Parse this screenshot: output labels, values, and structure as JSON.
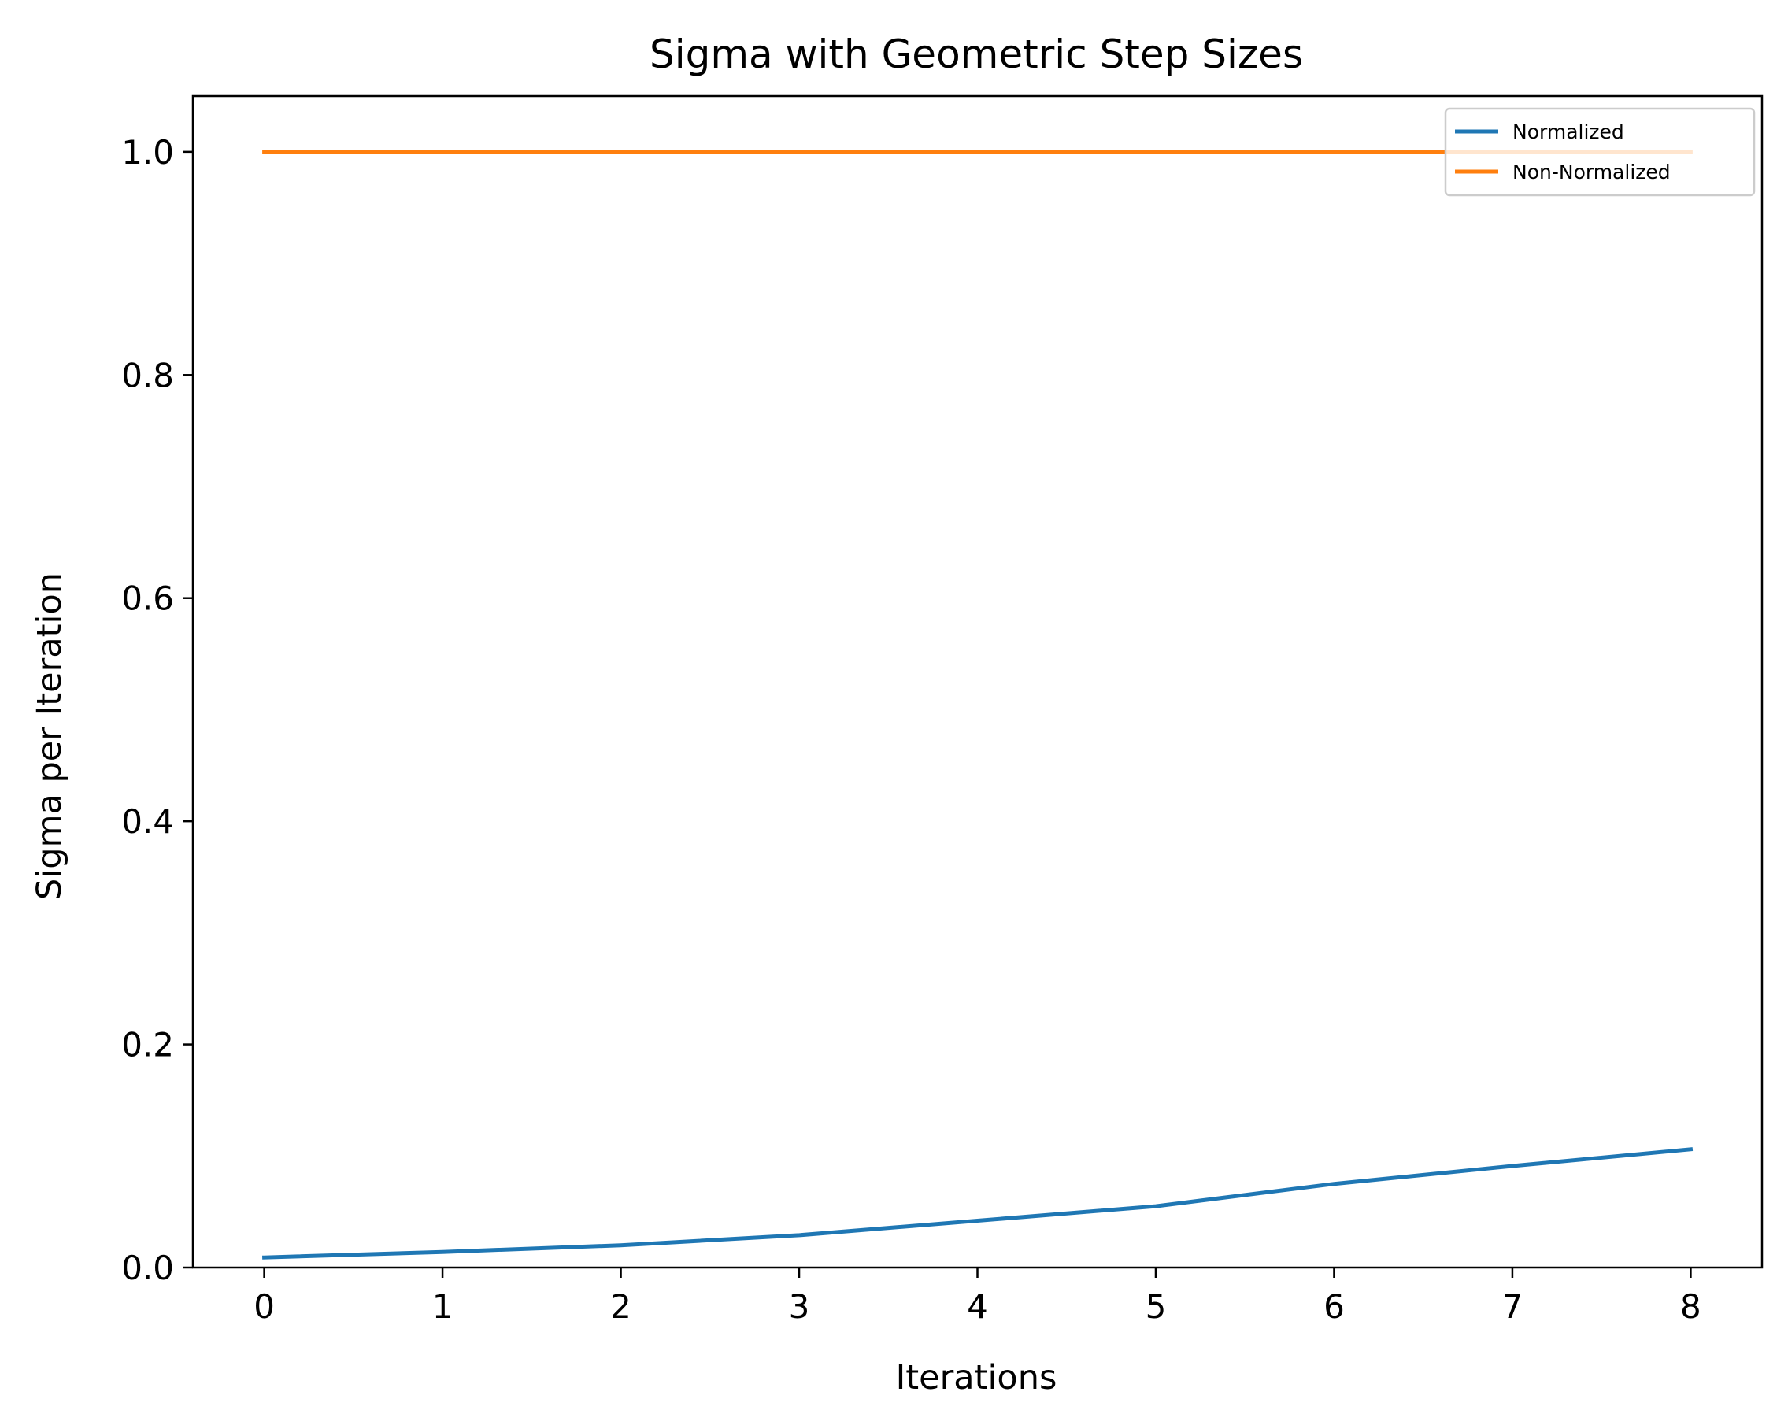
{
  "chart_data": {
    "type": "line",
    "title": "Sigma with Geometric Step Sizes",
    "xlabel": "Iterations",
    "ylabel": "Sigma per Iteration",
    "x": [
      0,
      1,
      2,
      3,
      4,
      5,
      6,
      7,
      8
    ],
    "xlim": [
      -0.4,
      8.4
    ],
    "ylim": [
      0.0,
      1.05
    ],
    "xticks": [
      "0",
      "1",
      "2",
      "3",
      "4",
      "5",
      "6",
      "7",
      "8"
    ],
    "yticks": [
      "0.0",
      "0.2",
      "0.4",
      "0.6",
      "0.8",
      "1.0"
    ],
    "grid": false,
    "legend_position": "top-right",
    "series": [
      {
        "name": "Normalized",
        "color": "#1f77b4",
        "values": [
          0.009,
          0.014,
          0.02,
          0.029,
          0.042,
          0.055,
          0.075,
          0.091,
          0.106
        ]
      },
      {
        "name": "Non-Normalized",
        "color": "#ff7f0e",
        "values": [
          1.0,
          1.0,
          1.0,
          1.0,
          1.0,
          1.0,
          1.0,
          1.0,
          1.0
        ]
      }
    ]
  }
}
